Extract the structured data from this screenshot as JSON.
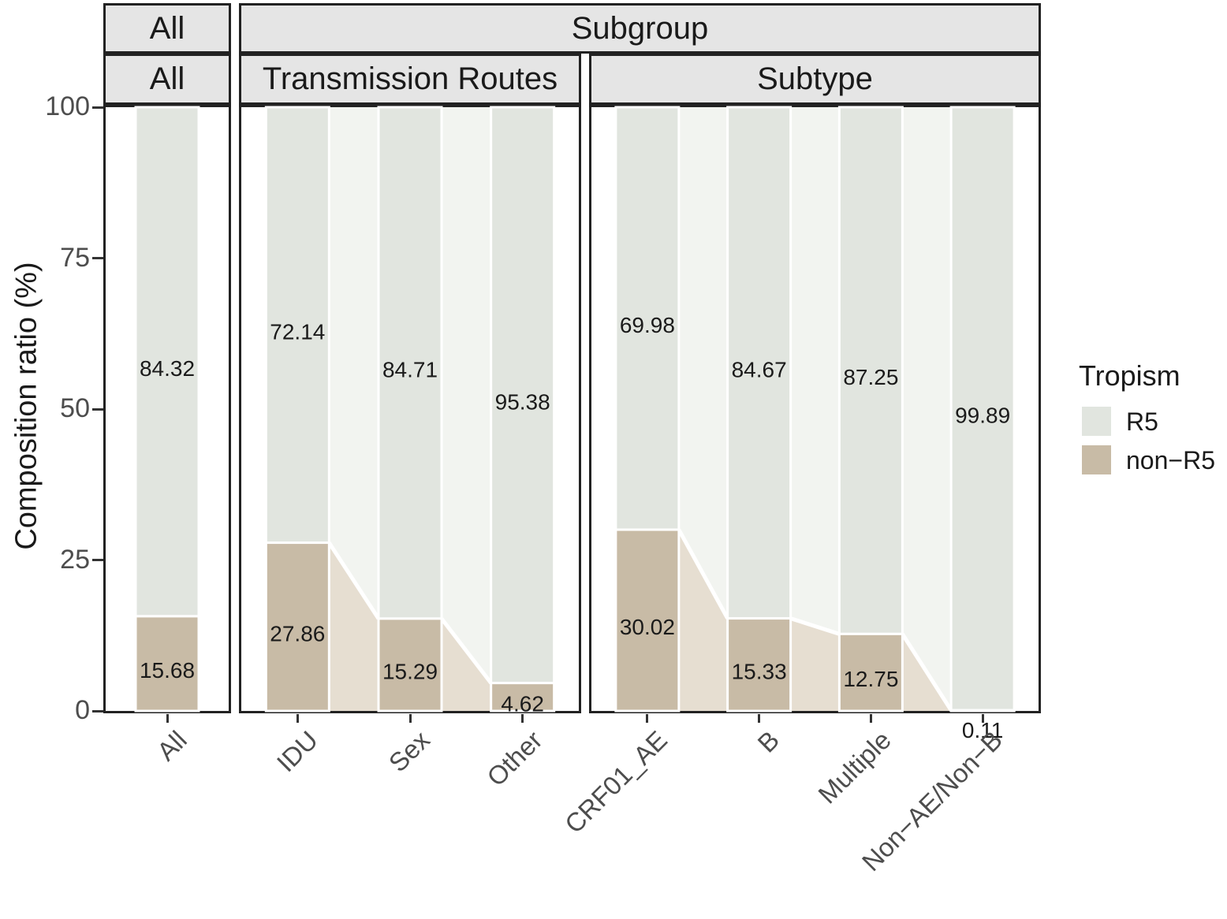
{
  "chart_data": {
    "type": "bar",
    "variant": "stacked-percentage-alluvial",
    "title": "",
    "ylabel": "Composition ratio (%)",
    "ylim": [
      0,
      100
    ],
    "yticks": [
      0,
      25,
      50,
      75,
      100
    ],
    "grid": false,
    "legend_position": "right",
    "strip_row_top": [
      {
        "label": "All"
      },
      {
        "label": "Subgroup"
      }
    ],
    "facets": [
      {
        "strip": "All",
        "categories": [
          "All"
        ],
        "series": [
          {
            "name": "R5",
            "values": [
              84.32
            ]
          },
          {
            "name": "non−R5",
            "values": [
              15.68
            ]
          }
        ]
      },
      {
        "strip": "Transmission Routes",
        "categories": [
          "IDU",
          "Sex",
          "Other"
        ],
        "series": [
          {
            "name": "R5",
            "values": [
              72.14,
              84.71,
              95.38
            ]
          },
          {
            "name": "non−R5",
            "values": [
              27.86,
              15.29,
              4.62
            ]
          }
        ]
      },
      {
        "strip": "Subtype",
        "categories": [
          "CRF01_AE",
          "B",
          "Multiple",
          "Non−AE/Non−B"
        ],
        "series": [
          {
            "name": "R5",
            "values": [
              69.98,
              84.67,
              87.25,
              99.89
            ]
          },
          {
            "name": "non−R5",
            "values": [
              30.02,
              15.33,
              12.75,
              0.11
            ]
          }
        ]
      }
    ],
    "legend": {
      "title": "Tropism",
      "entries": [
        {
          "label": "R5",
          "color": "#e1e5df"
        },
        {
          "label": "non−R5",
          "color": "#c8bba6"
        }
      ]
    },
    "colors": {
      "r5_bar": "#e1e5df",
      "r5_flow": "#f2f4f0",
      "non_r5_bar": "#c8bba6",
      "non_r5_flow": "#e6ded1",
      "strip_bg": "#e5e5e5",
      "panel_border": "#222222",
      "axis_text": "#4d4d4d",
      "value_text": "#1a1a1a",
      "tick_mark": "#333333"
    }
  }
}
